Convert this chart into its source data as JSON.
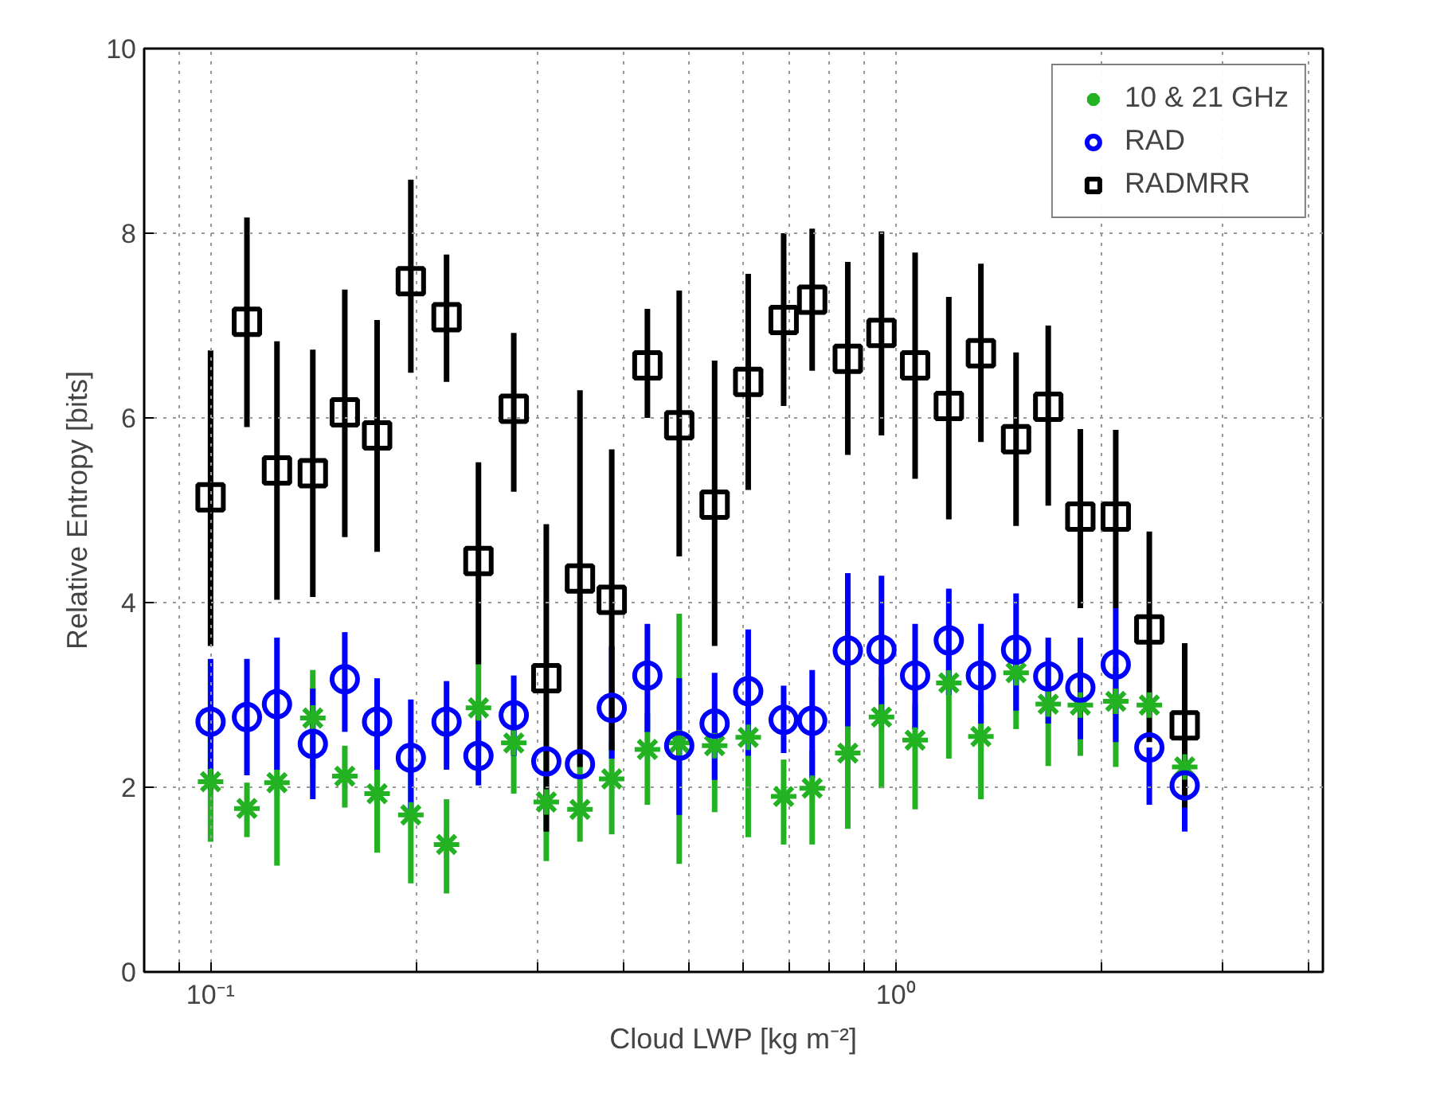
{
  "chart_data": {
    "type": "scatter",
    "xlabel": "Cloud LWP [kg m⁻²]",
    "ylabel": "Relative Entropy [bits]",
    "log": "x",
    "grid": true,
    "legend": "top right",
    "xlim": [
      0.08,
      4.2
    ],
    "ylim": [
      0,
      10
    ],
    "xticks": [
      {
        "value": 0.09,
        "label": null
      },
      {
        "value": 0.1,
        "label": "10⁻¹"
      },
      {
        "value": 0.2,
        "label": null
      },
      {
        "value": 0.3,
        "label": null
      },
      {
        "value": 0.4,
        "label": null
      },
      {
        "value": 0.5,
        "label": null
      },
      {
        "value": 0.6,
        "label": null
      },
      {
        "value": 0.7,
        "label": null
      },
      {
        "value": 0.8,
        "label": null
      },
      {
        "value": 0.9,
        "label": null
      },
      {
        "value": 1,
        "label": "10⁰"
      },
      {
        "value": 2,
        "label": null
      },
      {
        "value": 3,
        "label": null
      },
      {
        "value": 4,
        "label": null
      }
    ],
    "yticks": [
      0,
      2,
      4,
      6,
      8,
      10
    ],
    "x": [
      0.1,
      0.113,
      0.125,
      0.141,
      0.157,
      0.175,
      0.196,
      0.221,
      0.246,
      0.277,
      0.309,
      0.346,
      0.385,
      0.434,
      0.483,
      0.544,
      0.609,
      0.686,
      0.755,
      0.851,
      0.953,
      1.067,
      1.195,
      1.331,
      1.498,
      1.669,
      1.859,
      2.094,
      2.344,
      2.64
    ],
    "series": [
      {
        "name": "10 & 21 GHz",
        "color": "#22b222",
        "marker": "cross",
        "values": [
          2.06,
          1.77,
          2.05,
          2.75,
          2.12,
          1.93,
          1.7,
          1.38,
          2.86,
          2.48,
          1.84,
          1.76,
          2.09,
          2.41,
          2.48,
          2.45,
          2.54,
          1.9,
          1.99,
          2.37,
          2.76,
          2.51,
          3.13,
          2.55,
          3.24,
          2.9,
          2.89,
          2.93,
          2.89,
          2.22
        ],
        "errors": [
          [
            1.41,
            2.7
          ],
          [
            1.46,
            2.05
          ],
          [
            1.15,
            2.95
          ],
          [
            2.2,
            3.27
          ],
          [
            1.78,
            2.45
          ],
          [
            1.29,
            2.55
          ],
          [
            0.96,
            2.31
          ],
          [
            0.85,
            1.87
          ],
          [
            2.4,
            3.33
          ],
          [
            1.93,
            2.9
          ],
          [
            1.2,
            2.4
          ],
          [
            1.41,
            2.3
          ],
          [
            1.49,
            2.5
          ],
          [
            1.81,
            2.8
          ],
          [
            1.17,
            3.88
          ],
          [
            1.73,
            2.8
          ],
          [
            1.46,
            3.0
          ],
          [
            1.38,
            2.3
          ],
          [
            1.38,
            2.4
          ],
          [
            1.55,
            2.8
          ],
          [
            1.99,
            3.2
          ],
          [
            1.76,
            2.9
          ],
          [
            2.31,
            3.5
          ],
          [
            1.87,
            2.9
          ],
          [
            2.63,
            3.6
          ],
          [
            2.23,
            3.3
          ],
          [
            2.34,
            3.3
          ],
          [
            2.22,
            3.3
          ],
          null,
          null
        ]
      },
      {
        "name": "RAD",
        "color": "#0000ff",
        "marker": "circle",
        "values": [
          2.71,
          2.76,
          2.9,
          2.47,
          3.17,
          2.71,
          2.32,
          2.71,
          2.34,
          2.78,
          2.28,
          2.25,
          2.86,
          3.21,
          2.45,
          2.69,
          3.04,
          2.73,
          2.72,
          3.48,
          3.49,
          3.21,
          3.59,
          3.21,
          3.49,
          3.2,
          3.08,
          3.33,
          2.43,
          2.02
        ],
        "errors": [
          [
            1.97,
            3.39
          ],
          [
            2.13,
            3.39
          ],
          [
            2.19,
            3.62
          ],
          [
            1.87,
            3.07
          ],
          [
            2.6,
            3.68
          ],
          [
            2.19,
            3.18
          ],
          [
            1.73,
            2.95
          ],
          [
            2.19,
            3.15
          ],
          [
            2.02,
            2.78
          ],
          [
            2.34,
            3.21
          ],
          null,
          null,
          [
            2.31,
            3.53
          ],
          [
            2.6,
            3.77
          ],
          [
            1.7,
            3.18
          ],
          [
            2.08,
            3.24
          ],
          [
            2.34,
            3.71
          ],
          [
            2.37,
            3.1
          ],
          [
            2.1,
            3.27
          ],
          [
            2.66,
            4.32
          ],
          [
            2.69,
            4.29
          ],
          [
            2.63,
            3.77
          ],
          [
            3.0,
            4.15
          ],
          [
            2.69,
            3.77
          ],
          [
            2.83,
            4.1
          ],
          [
            2.69,
            3.62
          ],
          [
            2.52,
            3.62
          ],
          [
            2.49,
            3.94
          ],
          [
            1.81,
            2.43
          ],
          [
            1.52,
            2.54
          ]
        ]
      },
      {
        "name": "RADMRR",
        "color": "#000000",
        "marker": "square",
        "values": [
          5.14,
          7.04,
          5.43,
          5.4,
          6.06,
          5.81,
          7.48,
          7.09,
          4.45,
          6.1,
          3.18,
          4.26,
          4.03,
          6.57,
          5.92,
          5.06,
          6.39,
          7.06,
          7.28,
          6.64,
          6.92,
          6.57,
          6.13,
          6.7,
          5.77,
          6.12,
          4.93,
          4.93,
          3.71,
          2.67
        ],
        "errors": [
          [
            3.53,
            6.73
          ],
          [
            5.9,
            8.17
          ],
          [
            4.03,
            6.83
          ],
          [
            4.06,
            6.74
          ],
          [
            4.71,
            7.39
          ],
          [
            4.55,
            7.06
          ],
          [
            6.49,
            8.58
          ],
          [
            6.39,
            7.77
          ],
          [
            3.33,
            5.52
          ],
          [
            5.2,
            6.92
          ],
          [
            1.52,
            4.85
          ],
          [
            2.22,
            6.3
          ],
          [
            2.4,
            5.66
          ],
          [
            6.0,
            7.18
          ],
          [
            4.5,
            7.38
          ],
          [
            3.53,
            6.62
          ],
          [
            5.22,
            7.56
          ],
          [
            6.13,
            8.0
          ],
          [
            6.51,
            8.05
          ],
          [
            5.6,
            7.69
          ],
          [
            5.81,
            8.02
          ],
          [
            5.34,
            7.79
          ],
          [
            4.9,
            7.31
          ],
          [
            5.74,
            7.67
          ],
          [
            4.83,
            6.71
          ],
          [
            5.05,
            7.0
          ],
          [
            3.94,
            5.88
          ],
          [
            3.94,
            5.87
          ],
          [
            2.49,
            4.77
          ],
          [
            1.78,
            3.56
          ]
        ]
      }
    ]
  }
}
